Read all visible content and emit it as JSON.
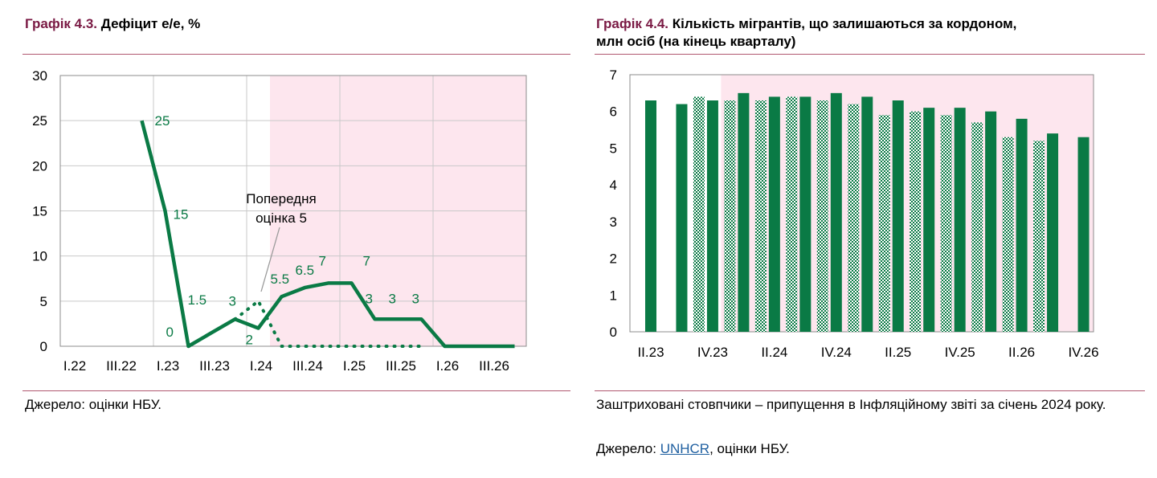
{
  "left": {
    "title_num": "Графік 4.3.",
    "title_text": "Дефіцит е/е, %",
    "source": "Джерело: оцінки НБУ.",
    "chart_data": {
      "type": "line",
      "x": [
        "I.22",
        "II.22",
        "III.22",
        "IV.22",
        "I.23",
        "II.23",
        "III.23",
        "IV.23",
        "I.24",
        "II.24",
        "III.24",
        "IV.24",
        "I.25",
        "II.25",
        "III.25",
        "IV.25",
        "I.26",
        "II.26",
        "III.26",
        "IV.26"
      ],
      "x_tick_labels": [
        "I.22",
        "III.22",
        "I.23",
        "III.23",
        "I.24",
        "III.24",
        "I.25",
        "III.25",
        "I.26",
        "III.26"
      ],
      "ylim": [
        0,
        30
      ],
      "y_ticks": [
        "0",
        "5",
        "10",
        "15",
        "20",
        "25",
        "30"
      ],
      "shaded_from": "II.24",
      "series": [
        {
          "style": "solid",
          "color": "#0a7a45",
          "values": [
            null,
            null,
            null,
            25,
            15,
            0,
            1.5,
            3,
            2,
            5.5,
            6.5,
            7,
            7,
            3,
            3,
            3,
            0,
            0,
            0,
            0
          ],
          "labels": [
            null,
            null,
            null,
            "25",
            "15",
            "0",
            "1.5",
            "3",
            "2",
            "5.5",
            "6.5",
            "7",
            "7",
            "3",
            "3",
            "3",
            null,
            null,
            null,
            null
          ]
        },
        {
          "style": "dotted",
          "color": "#0a7a45",
          "values": [
            null,
            null,
            null,
            null,
            null,
            null,
            null,
            3,
            5,
            0,
            0,
            0,
            0,
            0,
            0,
            0,
            null,
            null,
            null,
            null
          ]
        }
      ],
      "annotation": {
        "lines": [
          "Попередня",
          "оцінка 5"
        ]
      }
    }
  },
  "right": {
    "title_num": "Графік 4.4.",
    "title_text_1": "Кількість мігрантів, що залишаються за кордоном,",
    "title_text_2": "млн осіб (на кінець кварталу)",
    "footnote": "Заштриховані стовпчики – припущення в Інфляційному звіті за січень 2024 року.",
    "source_prefix": "Джерело: ",
    "source_link": "UNHCR",
    "source_suffix": ", оцінки НБУ.",
    "chart_data": {
      "type": "bar",
      "ylim": [
        0,
        7
      ],
      "y_ticks": [
        "0",
        "1",
        "2",
        "3",
        "4",
        "5",
        "6",
        "7"
      ],
      "x_tick_labels": [
        "II.23",
        "IV.23",
        "II.24",
        "IV.24",
        "II.25",
        "IV.25",
        "II.26",
        "IV.26"
      ],
      "categories": [
        "II.23",
        "III.23",
        "IV.23",
        "I.24",
        "II.24",
        "III.24",
        "IV.24",
        "I.25",
        "II.25",
        "III.25",
        "IV.25",
        "I.26",
        "II.26",
        "III.26",
        "IV.26"
      ],
      "shaded_from": "I.24",
      "series": [
        {
          "style": "solid",
          "color": "#0a7a45",
          "values": [
            6.3,
            6.2,
            6.3,
            6.5,
            6.4,
            6.4,
            6.5,
            6.4,
            6.3,
            6.1,
            6.1,
            6.0,
            5.8,
            5.4,
            5.3
          ]
        },
        {
          "style": "hatched",
          "color": "#0a7a45",
          "values": [
            null,
            null,
            6.4,
            6.3,
            6.3,
            6.4,
            6.3,
            6.2,
            5.9,
            6.0,
            5.9,
            5.7,
            5.3,
            5.2,
            null
          ]
        }
      ]
    }
  }
}
